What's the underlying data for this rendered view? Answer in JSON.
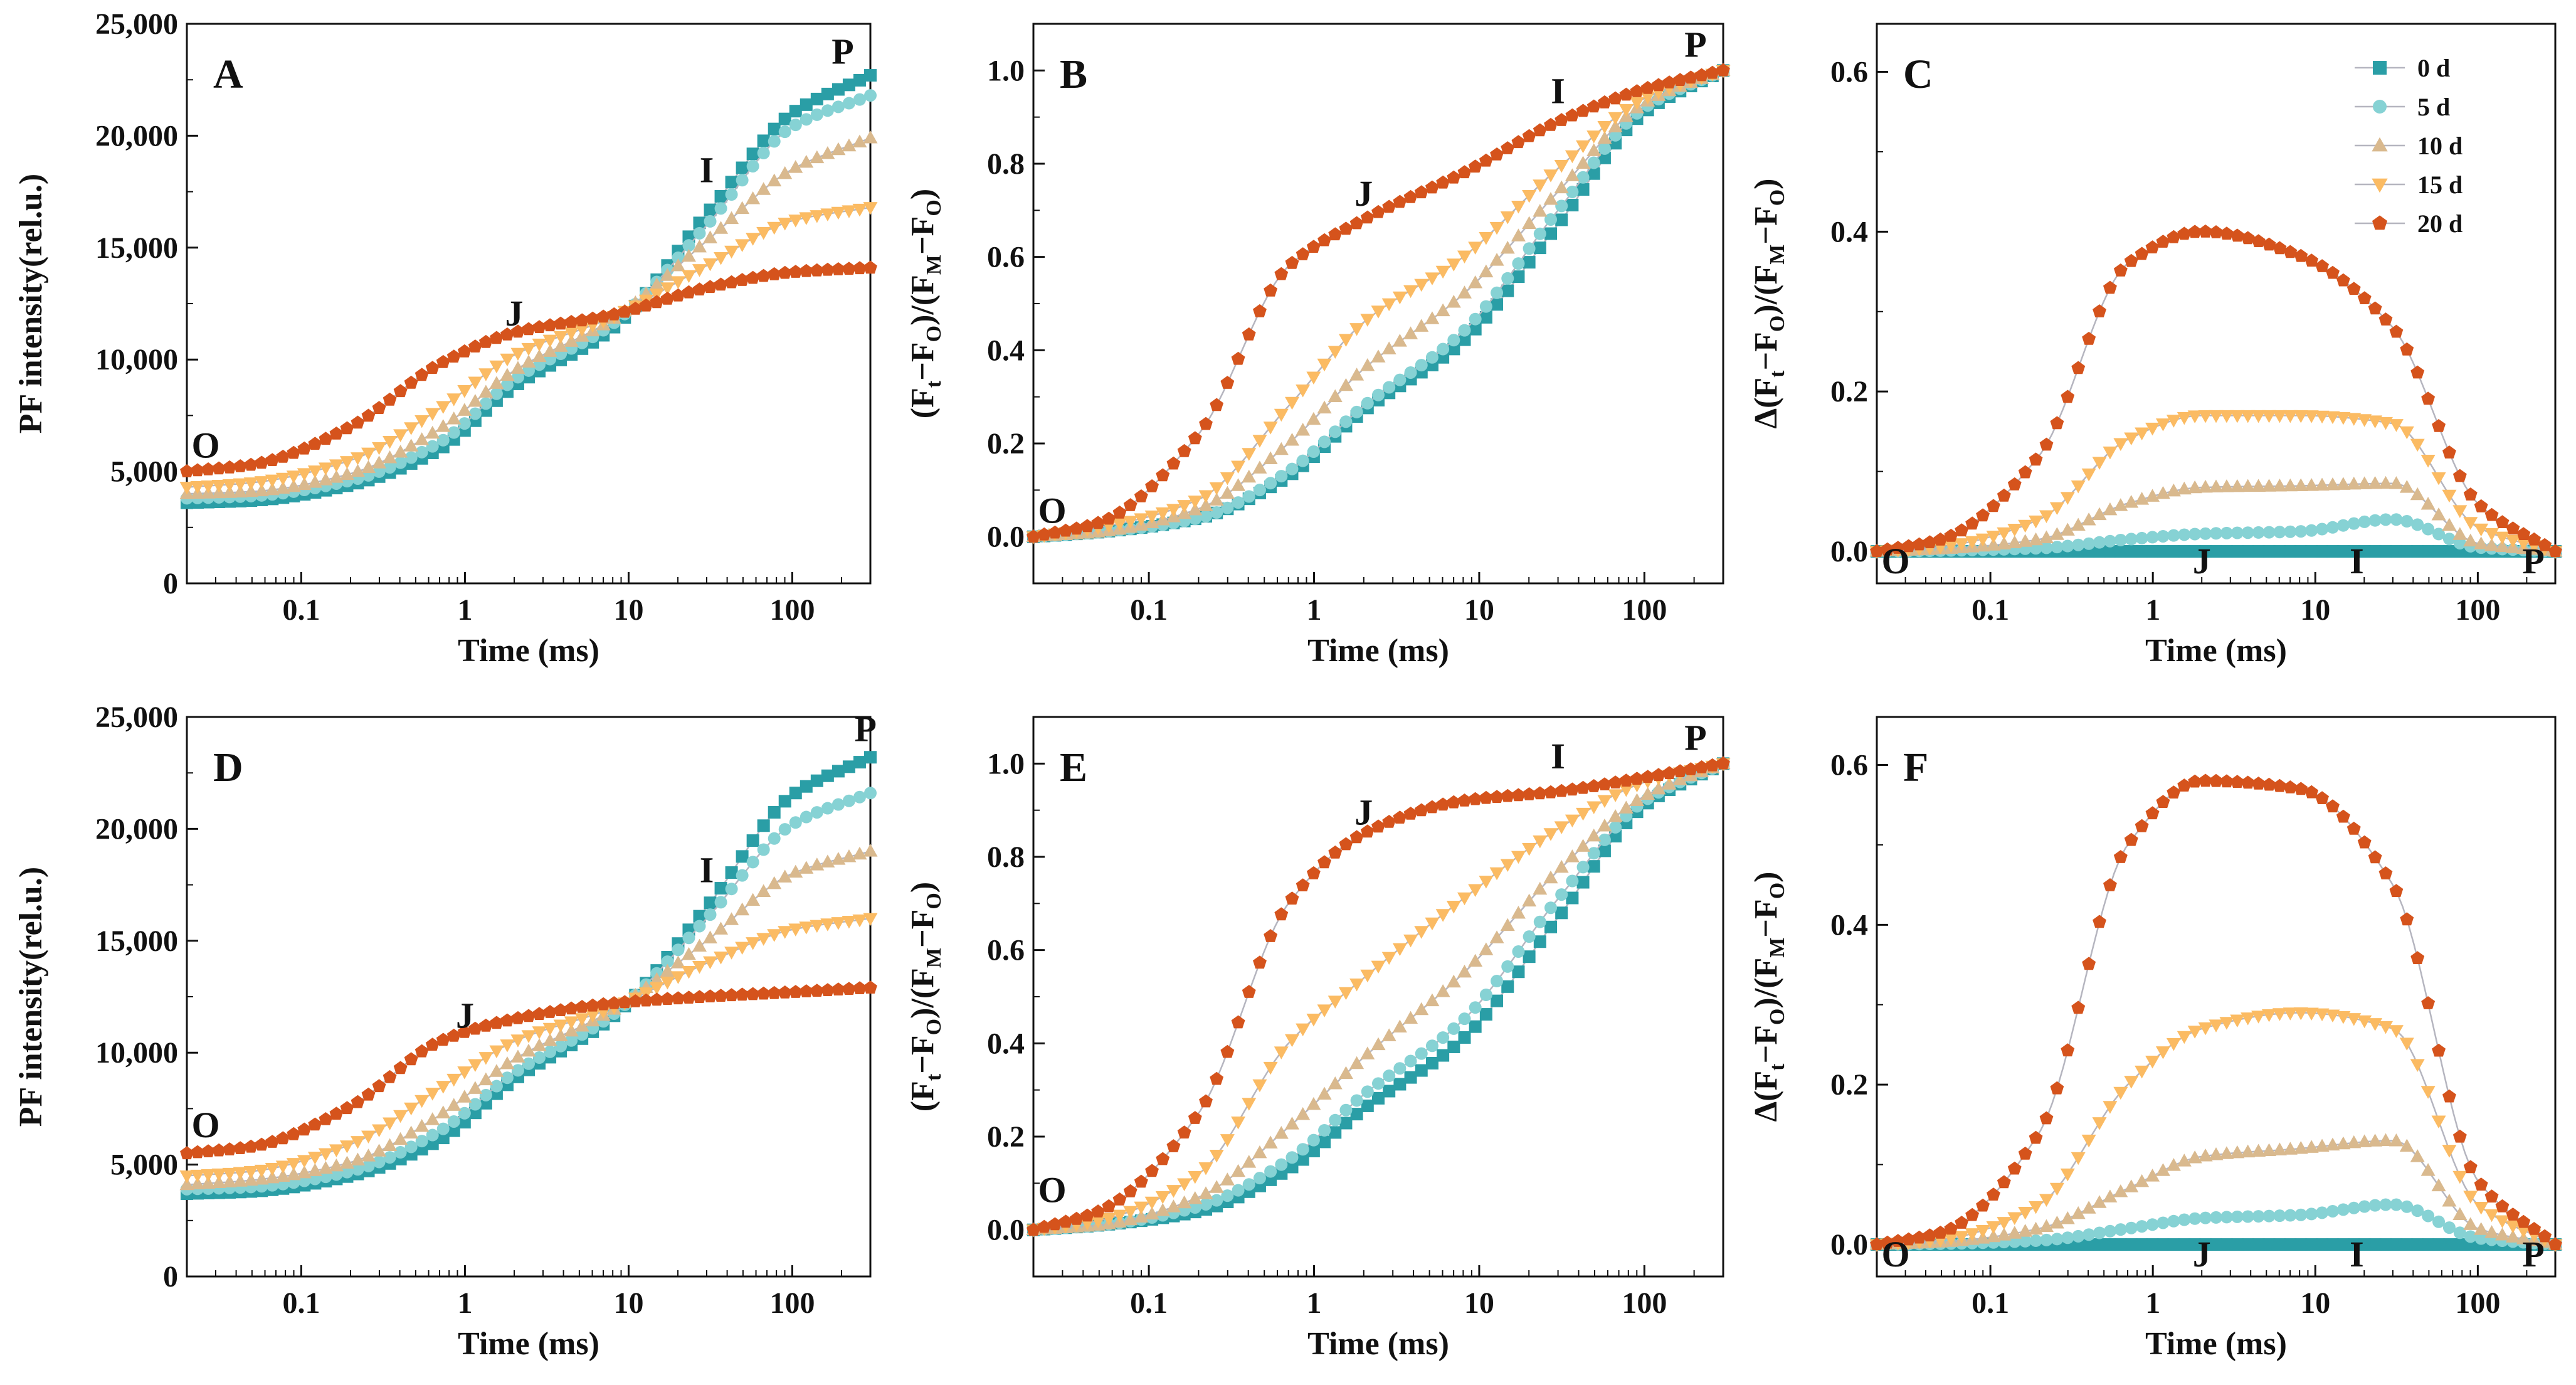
{
  "chart_data": [
    {
      "panel": "A",
      "type": "line",
      "xlabel": "Time (ms)",
      "ylabel": "PF intensity(rel.u.)",
      "ylabel_style": "pf",
      "xscale": "log",
      "xlim": [
        0.02,
        300
      ],
      "ylim": [
        0,
        25000
      ],
      "xticks": [
        0.1,
        1,
        10,
        100
      ],
      "xtick_labels": [
        "0.1",
        "1",
        "10",
        "100"
      ],
      "yticks": [
        0,
        5000,
        10000,
        15000,
        20000,
        25000
      ],
      "ytick_labels": [
        "0",
        "5,000",
        "10,000",
        "15,000",
        "20,000",
        "25,000"
      ],
      "series": [
        {
          "name": "0 d",
          "values": [
            3600,
            3700,
            4400,
            6000,
            8800,
            11400,
            16500,
            21000,
            22700
          ]
        },
        {
          "name": "5 d",
          "values": [
            3800,
            3900,
            4600,
            6300,
            9100,
            11600,
            16000,
            20400,
            21800
          ]
        },
        {
          "name": "10 d",
          "values": [
            4000,
            4100,
            4900,
            6900,
            9500,
            11800,
            15300,
            18500,
            19900
          ]
        },
        {
          "name": "15 d",
          "values": [
            4300,
            4500,
            5500,
            7800,
            10200,
            11900,
            14200,
            16200,
            16800
          ]
        },
        {
          "name": "20 d",
          "values": [
            5000,
            5300,
            7000,
            9800,
            11200,
            12000,
            13200,
            13900,
            14100
          ]
        }
      ],
      "annotations": [
        {
          "text": "O",
          "x": 0.02,
          "y": 5000
        },
        {
          "text": "J",
          "x": 2,
          "y": 10900
        },
        {
          "text": "I",
          "x": 30,
          "y": 17300
        },
        {
          "text": "P",
          "x": 300,
          "y": 22600
        }
      ]
    },
    {
      "panel": "B",
      "type": "line",
      "xlabel": "Time (ms)",
      "ylabel": "(Ft−FO)/(FM−FO)",
      "ylabel_style": "vop",
      "xscale": "log",
      "xlim": [
        0.02,
        300
      ],
      "ylim": [
        -0.1,
        1.1
      ],
      "xticks": [
        0.1,
        1,
        10,
        100
      ],
      "xtick_labels": [
        "0.1",
        "1",
        "10",
        "100"
      ],
      "yticks": [
        0,
        0.2,
        0.4,
        0.6,
        0.8,
        1.0
      ],
      "ytick_labels": [
        "0.0",
        "0.2",
        "0.4",
        "0.6",
        "0.8",
        "1.0"
      ],
      "series": [
        {
          "name": "0 d",
          "values": [
            0,
            0.01,
            0.04,
            0.13,
            0.27,
            0.42,
            0.67,
            0.91,
            1.0
          ]
        },
        {
          "name": "5 d",
          "values": [
            0,
            0.01,
            0.04,
            0.14,
            0.28,
            0.44,
            0.7,
            0.92,
            1.0
          ]
        },
        {
          "name": "10 d",
          "values": [
            0,
            0.01,
            0.06,
            0.2,
            0.36,
            0.52,
            0.74,
            0.93,
            1.0
          ]
        },
        {
          "name": "15 d",
          "values": [
            0,
            0.02,
            0.08,
            0.28,
            0.46,
            0.6,
            0.79,
            0.94,
            1.0
          ]
        },
        {
          "name": "20 d",
          "values": [
            0,
            0.03,
            0.22,
            0.58,
            0.68,
            0.78,
            0.89,
            0.96,
            1.0
          ]
        }
      ],
      "annotations": [
        {
          "text": "O",
          "x": 0.02,
          "y": 0.0
        },
        {
          "text": "J",
          "x": 2,
          "y": 0.68
        },
        {
          "text": "I",
          "x": 30,
          "y": 0.9
        },
        {
          "text": "P",
          "x": 300,
          "y": 1.0
        }
      ]
    },
    {
      "panel": "C",
      "type": "line",
      "xlabel": "Time (ms)",
      "ylabel": "Δ(Ft−FO)/(FM−FO)",
      "ylabel_style": "dvop",
      "xscale": "log",
      "xlim": [
        0.02,
        300
      ],
      "ylim": [
        -0.04,
        0.66
      ],
      "xticks": [
        0.1,
        1,
        10,
        100
      ],
      "xtick_labels": [
        "0.1",
        "1",
        "10",
        "100"
      ],
      "yticks": [
        0,
        0.2,
        0.4,
        0.6
      ],
      "ytick_labels": [
        "0.0",
        "0.2",
        "0.4",
        "0.6"
      ],
      "series": [
        {
          "name": "0 d",
          "values": [
            0,
            0,
            0,
            0,
            0,
            0,
            0,
            0,
            0
          ]
        },
        {
          "name": "5 d",
          "values": [
            0,
            0.001,
            0.004,
            0.015,
            0.022,
            0.025,
            0.04,
            0.005,
            0
          ]
        },
        {
          "name": "10 d",
          "values": [
            0,
            0.003,
            0.015,
            0.06,
            0.08,
            0.082,
            0.085,
            0.01,
            0
          ]
        },
        {
          "name": "15 d",
          "values": [
            0,
            0.006,
            0.04,
            0.14,
            0.17,
            0.17,
            0.16,
            0.03,
            0
          ]
        },
        {
          "name": "20 d",
          "values": [
            0,
            0.015,
            0.12,
            0.36,
            0.4,
            0.37,
            0.28,
            0.06,
            0
          ]
        }
      ],
      "annotations": [
        {
          "text": "O",
          "x": 0.02,
          "y": -0.01
        },
        {
          "text": "J",
          "x": 2,
          "y": -0.01
        },
        {
          "text": "I",
          "x": 18,
          "y": -0.01
        },
        {
          "text": "P",
          "x": 220,
          "y": -0.01
        }
      ]
    },
    {
      "panel": "D",
      "type": "line",
      "xlabel": "Time (ms)",
      "ylabel": "PF intensity(rel.u.)",
      "ylabel_style": "pf",
      "xscale": "log",
      "xlim": [
        0.02,
        300
      ],
      "ylim": [
        0,
        25000
      ],
      "xticks": [
        0.1,
        1,
        10,
        100
      ],
      "xtick_labels": [
        "0.1",
        "1",
        "10",
        "100"
      ],
      "yticks": [
        0,
        5000,
        10000,
        15000,
        20000,
        25000
      ],
      "ytick_labels": [
        "0",
        "5,000",
        "10,000",
        "15,000",
        "20,000",
        "25,000"
      ],
      "series": [
        {
          "name": "0 d",
          "values": [
            3700,
            3800,
            4500,
            6100,
            8800,
            11600,
            16500,
            21500,
            23200
          ]
        },
        {
          "name": "5 d",
          "values": [
            3900,
            4000,
            4700,
            6500,
            9100,
            11700,
            16000,
            20200,
            21600
          ]
        },
        {
          "name": "10 d",
          "values": [
            4100,
            4300,
            5100,
            7200,
            9700,
            11900,
            15000,
            18000,
            19000
          ]
        },
        {
          "name": "15 d",
          "values": [
            4500,
            4700,
            5900,
            8400,
            10500,
            12000,
            14000,
            15500,
            16000
          ]
        },
        {
          "name": "20 d",
          "values": [
            5500,
            5800,
            7600,
            10500,
            11500,
            12200,
            12500,
            12700,
            12900
          ]
        }
      ],
      "annotations": [
        {
          "text": "O",
          "x": 0.02,
          "y": 5600
        },
        {
          "text": "J",
          "x": 1,
          "y": 10500
        },
        {
          "text": "I",
          "x": 30,
          "y": 17000
        },
        {
          "text": "P",
          "x": 280,
          "y": 23300
        }
      ]
    },
    {
      "panel": "E",
      "type": "line",
      "xlabel": "Time (ms)",
      "ylabel": "(Ft−FO)/(FM−FO)",
      "ylabel_style": "vop",
      "xscale": "log",
      "xlim": [
        0.02,
        300
      ],
      "ylim": [
        -0.1,
        1.1
      ],
      "xticks": [
        0.1,
        1,
        10,
        100
      ],
      "xtick_labels": [
        "0.1",
        "1",
        "10",
        "100"
      ],
      "yticks": [
        0,
        0.2,
        0.4,
        0.6,
        0.8,
        1.0
      ],
      "ytick_labels": [
        "0.0",
        "0.2",
        "0.4",
        "0.6",
        "0.8",
        "1.0"
      ],
      "series": [
        {
          "name": "0 d",
          "values": [
            0,
            0.01,
            0.04,
            0.13,
            0.26,
            0.41,
            0.67,
            0.91,
            1.0
          ]
        },
        {
          "name": "5 d",
          "values": [
            0,
            0.01,
            0.05,
            0.15,
            0.29,
            0.45,
            0.71,
            0.92,
            1.0
          ]
        },
        {
          "name": "10 d",
          "values": [
            0,
            0.01,
            0.07,
            0.22,
            0.37,
            0.55,
            0.77,
            0.93,
            1.0
          ]
        },
        {
          "name": "15 d",
          "values": [
            0,
            0.02,
            0.12,
            0.4,
            0.54,
            0.71,
            0.86,
            0.96,
            1.0
          ]
        },
        {
          "name": "20 d",
          "values": [
            0,
            0.04,
            0.25,
            0.7,
            0.85,
            0.92,
            0.94,
            0.97,
            1.0
          ]
        }
      ],
      "annotations": [
        {
          "text": "O",
          "x": 0.02,
          "y": 0.03
        },
        {
          "text": "J",
          "x": 2,
          "y": 0.84
        },
        {
          "text": "I",
          "x": 30,
          "y": 0.96
        },
        {
          "text": "P",
          "x": 300,
          "y": 1.0
        }
      ]
    },
    {
      "panel": "F",
      "type": "line",
      "xlabel": "Time (ms)",
      "ylabel": "Δ(Ft−FO)/(FM−FO)",
      "ylabel_style": "dvop",
      "xscale": "log",
      "xlim": [
        0.02,
        300
      ],
      "ylim": [
        -0.04,
        0.66
      ],
      "xticks": [
        0.1,
        1,
        10,
        100
      ],
      "xtick_labels": [
        "0.1",
        "1",
        "10",
        "100"
      ],
      "yticks": [
        0,
        0.2,
        0.4,
        0.6
      ],
      "ytick_labels": [
        "0.0",
        "0.2",
        "0.4",
        "0.6"
      ],
      "series": [
        {
          "name": "0 d",
          "values": [
            0,
            0,
            0,
            0,
            0,
            0,
            0,
            0,
            0
          ]
        },
        {
          "name": "5 d",
          "values": [
            0,
            0.001,
            0.005,
            0.02,
            0.033,
            0.037,
            0.05,
            0.008,
            0
          ]
        },
        {
          "name": "10 d",
          "values": [
            0,
            0.003,
            0.02,
            0.07,
            0.11,
            0.12,
            0.13,
            0.02,
            0
          ]
        },
        {
          "name": "15 d",
          "values": [
            0,
            0.006,
            0.05,
            0.2,
            0.27,
            0.29,
            0.27,
            0.05,
            0
          ]
        },
        {
          "name": "20 d",
          "values": [
            0,
            0.015,
            0.14,
            0.5,
            0.58,
            0.57,
            0.45,
            0.08,
            0
          ]
        }
      ],
      "annotations": [
        {
          "text": "O",
          "x": 0.02,
          "y": -0.01
        },
        {
          "text": "J",
          "x": 2,
          "y": -0.01
        },
        {
          "text": "I",
          "x": 18,
          "y": -0.01
        },
        {
          "text": "P",
          "x": 220,
          "y": -0.01
        }
      ]
    }
  ],
  "time_points_ms": [
    0.02,
    0.05,
    0.2,
    0.7,
    2,
    8,
    30,
    100,
    300
  ],
  "legend": {
    "entries": [
      {
        "label": "0 d",
        "color": "#2a9ea6",
        "marker": "square"
      },
      {
        "label": "5 d",
        "color": "#86d2d4",
        "marker": "circle"
      },
      {
        "label": "10 d",
        "color": "#d9b98e",
        "marker": "triangle-up"
      },
      {
        "label": "15 d",
        "color": "#fbbb63",
        "marker": "triangle-down"
      },
      {
        "label": "20 d",
        "color": "#d5531c",
        "marker": "pentagon"
      }
    ]
  },
  "colors": {
    "connector": "#b5b5bf",
    "axis": "#111111"
  }
}
